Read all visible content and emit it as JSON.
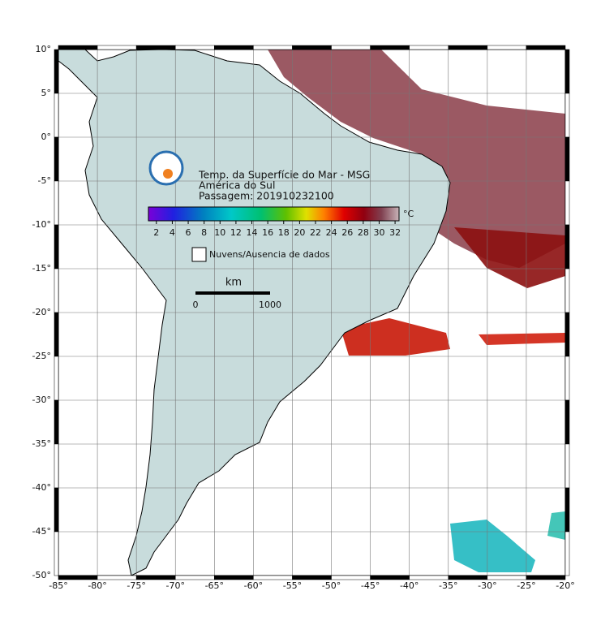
{
  "header": {
    "lines": [
      "Temp. da Superfície do Mar - MSG",
      "América do Sul",
      "Passagem: 201910232100"
    ]
  },
  "colorbar": {
    "unit": "°C",
    "lim": [
      1,
      32.5
    ],
    "ticks": [
      2,
      4,
      6,
      8,
      10,
      12,
      14,
      16,
      18,
      20,
      22,
      24,
      26,
      28,
      30,
      32
    ]
  },
  "legend": {
    "label": "Nuvens/Ausencia de dados"
  },
  "scale_bar": {
    "unit": "km",
    "labels": [
      "0",
      "1000"
    ]
  },
  "axes": {
    "xlim": [
      -85,
      -20
    ],
    "ylim": [
      -50,
      10
    ],
    "xticks": [
      {
        "value": -85,
        "label": "-85°"
      },
      {
        "value": -80,
        "label": "-80°"
      },
      {
        "value": -75,
        "label": "-75°"
      },
      {
        "value": -70,
        "label": "-70°"
      },
      {
        "value": -65,
        "label": "-65°"
      },
      {
        "value": -60,
        "label": "-60°"
      },
      {
        "value": -55,
        "label": "-55°"
      },
      {
        "value": -50,
        "label": "-50°"
      },
      {
        "value": -45,
        "label": "-45°"
      },
      {
        "value": -40,
        "label": "-40°"
      },
      {
        "value": -35,
        "label": "-35°"
      },
      {
        "value": -30,
        "label": "-30°"
      },
      {
        "value": -25,
        "label": "-25°"
      },
      {
        "value": -20,
        "label": "-20°"
      }
    ],
    "yticks": [
      {
        "value": 10,
        "label": "10°"
      },
      {
        "value": 5,
        "label": "5°"
      },
      {
        "value": 0,
        "label": "0°"
      },
      {
        "value": -5,
        "label": "-5°"
      },
      {
        "value": -10,
        "label": "-10°"
      },
      {
        "value": -15,
        "label": "-15°"
      },
      {
        "value": -20,
        "label": "-20°"
      },
      {
        "value": -25,
        "label": "-25°"
      },
      {
        "value": -30,
        "label": "-30°"
      },
      {
        "value": -35,
        "label": "-35°"
      },
      {
        "value": -40,
        "label": "-40°"
      },
      {
        "value": -45,
        "label": "-45°"
      },
      {
        "value": -50,
        "label": "-50°"
      }
    ]
  }
}
